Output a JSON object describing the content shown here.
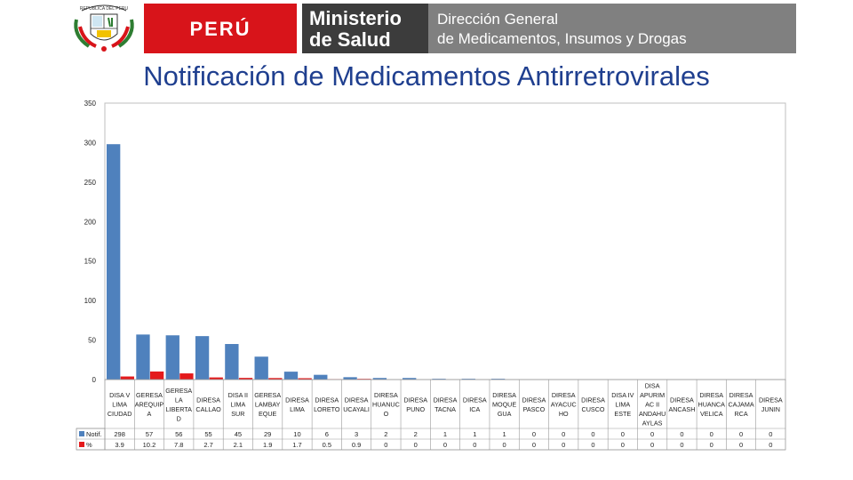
{
  "header": {
    "country": "PERÚ",
    "ministry_line1": "Ministerio",
    "ministry_line2": "de Salud",
    "direction_line1": "Dirección General",
    "direction_line2": "de Medicamentos, Insumos y Drogas",
    "shield_text": "REPUBLICA DEL PERU"
  },
  "colors": {
    "notif": "#4f81bd",
    "pct": "#e41a1c",
    "title": "#1f3f8f"
  },
  "chart_data": {
    "type": "bar",
    "title": "Notificación de Medicamentos Antirretrovirales",
    "ylim": [
      0,
      350
    ],
    "yticks": [
      0,
      50,
      100,
      150,
      200,
      250,
      300,
      350
    ],
    "categories": [
      [
        "DISA V",
        "LIMA",
        "CIUDAD"
      ],
      [
        "GERESA",
        "AREQUIP",
        "A"
      ],
      [
        "GERESA",
        "LA",
        "LIBERTA",
        "D"
      ],
      [
        "DIRESA",
        "CALLAO"
      ],
      [
        "DISA II",
        "LIMA",
        "SUR"
      ],
      [
        "GERESA",
        "LAMBAY",
        "EQUE"
      ],
      [
        "DIRESA",
        "LIMA"
      ],
      [
        "DIRESA",
        "LORETO"
      ],
      [
        "DIRESA",
        "UCAYALI"
      ],
      [
        "DIRESA",
        "HUANUC",
        "O"
      ],
      [
        "DIRESA",
        "PUNO"
      ],
      [
        "DIRESA",
        "TACNA"
      ],
      [
        "DIRESA",
        "ICA"
      ],
      [
        "DIRESA",
        "MOQUE",
        "GUA"
      ],
      [
        "DIRESA",
        "PASCO"
      ],
      [
        "DIRESA",
        "AYACUC",
        "HO"
      ],
      [
        "DIRESA",
        "CUSCO"
      ],
      [
        "DISA IV",
        "LIMA",
        "ESTE"
      ],
      [
        "DISA",
        "APURIM",
        "AC II",
        "ANDAHU",
        "AYLAS"
      ],
      [
        "DIRESA",
        "ANCASH"
      ],
      [
        "DIRESA",
        "HUANCA",
        "VELICA"
      ],
      [
        "DIRESA",
        "CAJAMA",
        "RCA"
      ],
      [
        "DIRESA",
        "JUNIN"
      ]
    ],
    "series": [
      {
        "name": "Notif.",
        "values": [
          298,
          57,
          56,
          55,
          45,
          29,
          10,
          6,
          3,
          2,
          2,
          1,
          1,
          1,
          0,
          0,
          0,
          0,
          0,
          0,
          0,
          0,
          0
        ]
      },
      {
        "name": "%",
        "values": [
          3.9,
          10.2,
          7.8,
          2.7,
          2.1,
          1.9,
          1.7,
          0.5,
          0.9,
          0,
          0,
          0,
          0,
          0,
          0,
          0,
          0,
          0,
          0,
          0,
          0,
          0,
          0
        ]
      }
    ],
    "xlabel": "",
    "ylabel": "",
    "legend": "table-left",
    "grid": false
  }
}
